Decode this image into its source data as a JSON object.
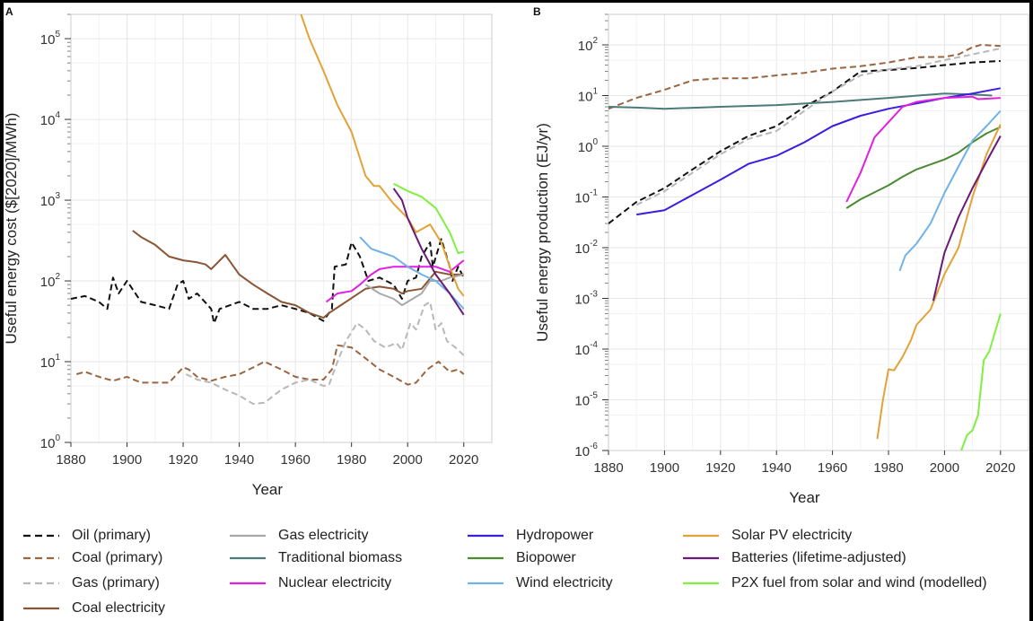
{
  "chart_data": [
    {
      "panel_label": "A",
      "type": "line",
      "xlabel": "Year",
      "ylabel": "Useful energy cost ($[2020]/MWh)",
      "yscale": "log",
      "xlim": [
        1880,
        2030
      ],
      "ylim": [
        1,
        200000
      ],
      "xticks": [
        1880,
        1900,
        1920,
        1940,
        1960,
        1980,
        2000,
        2020
      ],
      "yticks_exponent": [
        0,
        1,
        2,
        3,
        4,
        5
      ],
      "grid": true,
      "series": [
        {
          "name": "Oil (primary)",
          "x": [
            1880,
            1885,
            1890,
            1893,
            1895,
            1897,
            1900,
            1905,
            1910,
            1915,
            1918,
            1920,
            1922,
            1925,
            1930,
            1931,
            1933,
            1940,
            1945,
            1950,
            1955,
            1960,
            1965,
            1970,
            1973,
            1974,
            1978,
            1980,
            1983,
            1986,
            1990,
            1995,
            1998,
            2000,
            2003,
            2005,
            2008,
            2009,
            2012,
            2015,
            2016,
            2018,
            2020
          ],
          "y": [
            60,
            65,
            55,
            45,
            110,
            70,
            100,
            55,
            50,
            45,
            90,
            100,
            60,
            70,
            45,
            30,
            45,
            55,
            45,
            45,
            50,
            45,
            40,
            32,
            45,
            150,
            160,
            300,
            200,
            100,
            110,
            90,
            60,
            100,
            110,
            200,
            300,
            150,
            330,
            150,
            100,
            150,
            110
          ]
        },
        {
          "name": "Coal (primary)",
          "x": [
            1882,
            1885,
            1890,
            1895,
            1900,
            1905,
            1910,
            1915,
            1920,
            1922,
            1925,
            1930,
            1935,
            1940,
            1945,
            1949,
            1955,
            1960,
            1965,
            1970,
            1973,
            1975,
            1980,
            1985,
            1990,
            1995,
            2000,
            2003,
            2007,
            2011,
            2015,
            2018,
            2020
          ],
          "y": [
            7,
            7.5,
            6.5,
            5.8,
            6.5,
            5.5,
            5.5,
            5.5,
            8.5,
            8,
            6.5,
            5.8,
            6.5,
            7,
            8.5,
            10,
            8,
            6.5,
            6,
            6,
            8,
            16,
            15,
            11,
            8,
            6.5,
            5.2,
            5.5,
            8,
            10,
            7.5,
            8,
            7
          ]
        },
        {
          "name": "Gas (primary)",
          "x": [
            1921,
            1925,
            1930,
            1935,
            1940,
            1945,
            1949,
            1955,
            1960,
            1965,
            1970,
            1972,
            1975,
            1978,
            1982,
            1985,
            1988,
            1992,
            1996,
            1998,
            2001,
            2003,
            2006,
            2008,
            2010,
            2012,
            2014,
            2017,
            2020
          ],
          "y": [
            7,
            6,
            5.5,
            4.5,
            3.8,
            3,
            3.1,
            4.5,
            5.5,
            6,
            5,
            5.2,
            10,
            18,
            30,
            25,
            18,
            15,
            17,
            14,
            30,
            25,
            50,
            55,
            25,
            30,
            18,
            15,
            12
          ]
        },
        {
          "name": "Coal electricity",
          "x": [
            1902,
            1905,
            1910,
            1915,
            1920,
            1925,
            1928,
            1930,
            1935,
            1940,
            1945,
            1950,
            1955,
            1960,
            1965,
            1970,
            1972,
            1985,
            1990,
            1995,
            1998,
            2000,
            2005,
            2010,
            2015,
            2020
          ],
          "y": [
            420,
            350,
            280,
            200,
            180,
            170,
            160,
            140,
            210,
            120,
            90,
            70,
            55,
            50,
            40,
            35,
            40,
            80,
            85,
            80,
            70,
            75,
            80,
            130,
            120,
            120
          ]
        },
        {
          "name": "Gas electricity",
          "x": [
            1985,
            1990,
            1995,
            1998,
            2000,
            2005,
            2008,
            2012,
            2015,
            2020
          ],
          "y": [
            90,
            70,
            60,
            50,
            55,
            70,
            100,
            100,
            110,
            120
          ]
        },
        {
          "name": "Nuclear electricity",
          "x": [
            1971,
            1975,
            1980,
            1983,
            1987,
            1990,
            1995,
            2000,
            2010,
            2015,
            2020
          ],
          "y": [
            55,
            70,
            75,
            90,
            120,
            140,
            150,
            150,
            150,
            130,
            180
          ]
        },
        {
          "name": "Wind electricity",
          "x": [
            1983,
            1987,
            1990,
            1995,
            2000,
            2005,
            2010,
            2015,
            2020
          ],
          "y": [
            350,
            250,
            230,
            200,
            150,
            120,
            100,
            70,
            45
          ]
        },
        {
          "name": "Solar PV electricity",
          "x": [
            1962,
            1965,
            1970,
            1975,
            1980,
            1985,
            1988,
            1990,
            1995,
            2000,
            2003,
            2008,
            2012,
            2015,
            2018,
            2020
          ],
          "y": [
            200000,
            100000,
            40000,
            15000,
            7000,
            2000,
            1500,
            1500,
            900,
            600,
            400,
            500,
            300,
            150,
            80,
            65
          ]
        },
        {
          "name": "Batteries (lifetime-adjusted)",
          "x": [
            1995,
            1998,
            2000,
            2005,
            2010,
            2015,
            2020
          ],
          "y": [
            1400,
            1000,
            600,
            250,
            120,
            70,
            38
          ]
        },
        {
          "name": "P2X fuel from solar and wind (modelled)",
          "x": [
            1995,
            2000,
            2005,
            2010,
            2015,
            2018,
            2020
          ],
          "y": [
            1600,
            1300,
            1100,
            800,
            400,
            220,
            230
          ]
        }
      ]
    },
    {
      "panel_label": "B",
      "type": "line",
      "xlabel": "Year",
      "ylabel": "Useful energy production (EJ/yr)",
      "yscale": "log",
      "xlim": [
        1880,
        2030
      ],
      "ylim": [
        1e-06,
        400
      ],
      "xticks": [
        1880,
        1900,
        1920,
        1940,
        1960,
        1980,
        2000,
        2020
      ],
      "yticks_exponent": [
        -6,
        -5,
        -4,
        -3,
        -2,
        -1,
        0,
        1,
        2
      ],
      "grid": true,
      "series": [
        {
          "name": "Oil (primary)",
          "x": [
            1880,
            1890,
            1900,
            1910,
            1920,
            1930,
            1940,
            1950,
            1960,
            1970,
            1980,
            1990,
            2000,
            2010,
            2020
          ],
          "y": [
            0.03,
            0.08,
            0.15,
            0.35,
            0.8,
            1.6,
            2.5,
            6,
            12,
            30,
            32,
            35,
            40,
            45,
            48
          ]
        },
        {
          "name": "Coal (primary)",
          "x": [
            1880,
            1890,
            1900,
            1910,
            1920,
            1930,
            1940,
            1950,
            1960,
            1970,
            1980,
            1990,
            2000,
            2005,
            2010,
            2013,
            2020
          ],
          "y": [
            5.5,
            9,
            13,
            20,
            22,
            22,
            25,
            28,
            34,
            38,
            45,
            57,
            58,
            65,
            90,
            100,
            95
          ]
        },
        {
          "name": "Gas (primary)",
          "x": [
            1890,
            1900,
            1910,
            1920,
            1930,
            1940,
            1950,
            1960,
            1970,
            1980,
            1990,
            2000,
            2010,
            2020
          ],
          "y": [
            0.07,
            0.13,
            0.3,
            0.7,
            1.4,
            2,
            5,
            12,
            25,
            33,
            38,
            50,
            65,
            85
          ]
        },
        {
          "name": "Traditional biomass",
          "x": [
            1880,
            1890,
            1900,
            1920,
            1940,
            1960,
            1980,
            2000,
            2010,
            2017
          ],
          "y": [
            6,
            5.8,
            5.5,
            6,
            6.5,
            7.5,
            9,
            11,
            10.5,
            10
          ]
        },
        {
          "name": "Hydropower",
          "x": [
            1890,
            1900,
            1910,
            1920,
            1930,
            1940,
            1950,
            1960,
            1970,
            1980,
            1990,
            2000,
            2010,
            2020
          ],
          "y": [
            0.045,
            0.055,
            0.11,
            0.22,
            0.45,
            0.65,
            1.2,
            2.5,
            4,
            5.5,
            7,
            9,
            11,
            14
          ]
        },
        {
          "name": "Nuclear electricity",
          "x": [
            1965,
            1970,
            1975,
            1980,
            1985,
            1990,
            2000,
            2010,
            2012,
            2020
          ],
          "y": [
            0.08,
            0.3,
            1.5,
            3,
            6,
            7.5,
            9,
            9.5,
            8.5,
            9
          ]
        },
        {
          "name": "Biopower",
          "x": [
            1965,
            1970,
            1980,
            1985,
            1990,
            2000,
            2005,
            2010,
            2015,
            2020
          ],
          "y": [
            0.06,
            0.09,
            0.17,
            0.25,
            0.35,
            0.55,
            0.75,
            1.2,
            1.8,
            2.4
          ]
        },
        {
          "name": "Wind electricity",
          "x": [
            1984,
            1986,
            1990,
            1995,
            2000,
            2005,
            2010,
            2015,
            2020
          ],
          "y": [
            0.0035,
            0.007,
            0.012,
            0.03,
            0.12,
            0.4,
            1.3,
            2.5,
            5
          ]
        },
        {
          "name": "Solar PV electricity",
          "x": [
            1976,
            1978,
            1980,
            1982,
            1985,
            1988,
            1990,
            1995,
            2000,
            2005,
            2010,
            2015,
            2020
          ],
          "y": [
            1.7e-06,
            1e-05,
            4e-05,
            3.8e-05,
            7e-05,
            0.00015,
            0.0003,
            0.0006,
            0.003,
            0.01,
            0.1,
            0.7,
            2.7
          ]
        },
        {
          "name": "Batteries (lifetime-adjusted)",
          "x": [
            1996,
            2000,
            2005,
            2010,
            2015,
            2020
          ],
          "y": [
            0.0009,
            0.008,
            0.04,
            0.15,
            0.5,
            1.6
          ]
        },
        {
          "name": "P2X fuel from solar and wind (modelled)",
          "x": [
            2006,
            2008,
            2010,
            2012,
            2014,
            2016,
            2020
          ],
          "y": [
            1e-06,
            2e-06,
            2.5e-06,
            5e-06,
            6e-05,
            9e-05,
            0.0005
          ]
        }
      ]
    }
  ],
  "legend": [
    {
      "name": "Oil (primary)",
      "color": "#111111",
      "dash": true
    },
    {
      "name": "Coal (primary)",
      "color": "#9a6540",
      "dash": true
    },
    {
      "name": "Gas (primary)",
      "color": "#b8b8b8",
      "dash": true
    },
    {
      "name": "Coal electricity",
      "color": "#8a5535",
      "dash": false
    },
    {
      "name": "Gas electricity",
      "color": "#a8a8a8",
      "dash": false
    },
    {
      "name": "Traditional biomass",
      "color": "#4a7b78",
      "dash": false
    },
    {
      "name": "Nuclear electricity",
      "color": "#e020e0",
      "dash": false
    },
    {
      "name": "Hydropower",
      "color": "#3a1ee0",
      "dash": false
    },
    {
      "name": "Biopower",
      "color": "#4a8a30",
      "dash": false
    },
    {
      "name": "Wind electricity",
      "color": "#70b2ea",
      "dash": false
    },
    {
      "name": "Solar PV electricity",
      "color": "#e3a236",
      "dash": false
    },
    {
      "name": "Batteries (lifetime-adjusted)",
      "color": "#6a1a78",
      "dash": false
    },
    {
      "name": "P2X fuel from solar and wind (modelled)",
      "color": "#80f040",
      "dash": false
    }
  ]
}
